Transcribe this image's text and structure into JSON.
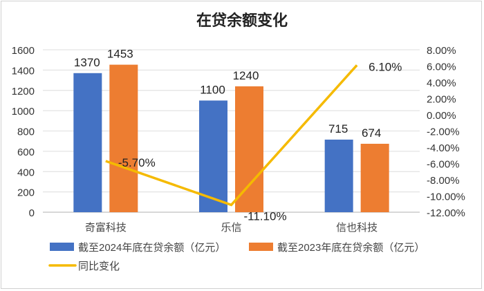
{
  "chart_data": {
    "type": "bar+line",
    "title": "在贷余额变化",
    "categories": [
      "奇富科技",
      "乐信",
      "信也科技"
    ],
    "series": [
      {
        "name": "截至2024年底在贷余额（亿元）",
        "type": "bar",
        "axis": "left",
        "color": "#4472C4",
        "values": [
          1370,
          1100,
          715
        ],
        "labels": [
          "1370",
          "1100",
          "715"
        ]
      },
      {
        "name": "截至2023年底在贷余额（亿元）",
        "type": "bar",
        "axis": "left",
        "color": "#ED7D31",
        "values": [
          1453,
          1240,
          674
        ],
        "labels": [
          "1453",
          "1240",
          "674"
        ]
      },
      {
        "name": "同比变化",
        "type": "line",
        "axis": "right",
        "color": "#F5BA00",
        "values": [
          -5.7,
          -11.1,
          6.1
        ],
        "labels": [
          "-5.70%",
          "-11.10%",
          "6.10%"
        ]
      }
    ],
    "y_left": {
      "min": 0,
      "max": 1600,
      "step": 200,
      "ticks": [
        "0",
        "200",
        "400",
        "600",
        "800",
        "1000",
        "1200",
        "1400",
        "1600"
      ]
    },
    "y_right": {
      "min": -12,
      "max": 8,
      "step": 2,
      "ticks": [
        "-12.00%",
        "-10.00%",
        "-8.00%",
        "-6.00%",
        "-4.00%",
        "-2.00%",
        "0.00%",
        "2.00%",
        "4.00%",
        "6.00%",
        "8.00%"
      ]
    },
    "grid": true,
    "legend_position": "bottom"
  }
}
